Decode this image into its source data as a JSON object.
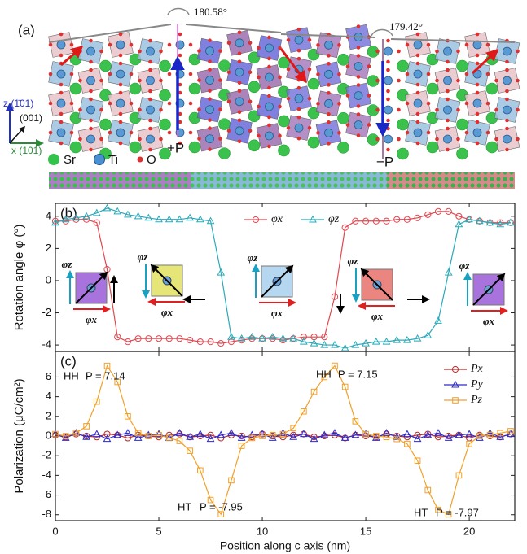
{
  "structure": {
    "panel": "(a)",
    "angles": [
      "180.58°",
      "179.42°"
    ],
    "polarization": [
      "+P",
      "−P"
    ],
    "legend": [
      "Sr",
      "Ti",
      "O"
    ],
    "axes": [
      "z (1̄01)",
      "(001)",
      "x (101)"
    ]
  },
  "chart_data": [
    {
      "type": "line",
      "panel": "(b)",
      "y_label": "Rotation angle φ (°)",
      "legend": "top center",
      "x": [
        0,
        0.5,
        1,
        1.5,
        2,
        2.5,
        3,
        3.5,
        4,
        4.5,
        5,
        5.5,
        6,
        6.5,
        7,
        7.5,
        8,
        8.5,
        9,
        9.5,
        10,
        10.5,
        11,
        11.5,
        12,
        12.5,
        13,
        13.5,
        14,
        14.5,
        15,
        15.5,
        16,
        16.5,
        17,
        17.5,
        18,
        18.5,
        19,
        19.5,
        20,
        20.5,
        21,
        21.5,
        22
      ],
      "xlim": [
        0,
        22.2
      ],
      "xticks": [
        0,
        5,
        10,
        15,
        20
      ],
      "ylim": [
        -4.4,
        4.8
      ],
      "yticks": [
        -4,
        -2,
        0,
        2,
        4
      ],
      "series": [
        {
          "name": "φx",
          "color": "#e2474f",
          "marker": "circle",
          "values": [
            3.7,
            3.7,
            3.8,
            3.8,
            3.6,
            0.7,
            -3.5,
            -3.8,
            -3.6,
            -3.6,
            -3.6,
            -3.6,
            -3.6,
            -3.7,
            -3.8,
            -3.8,
            -3.9,
            -3.8,
            -3.7,
            -3.6,
            -3.6,
            -3.6,
            -3.7,
            -3.6,
            -3.5,
            -3.5,
            -3.5,
            -1.0,
            3.3,
            3.7,
            3.7,
            3.7,
            3.7,
            3.8,
            3.8,
            3.9,
            4.1,
            4.3,
            4.3,
            4.0,
            3.8,
            3.7,
            3.6,
            3.6,
            3.6
          ]
        },
        {
          "name": "φz",
          "color": "#2aa9b8",
          "marker": "triangle",
          "values": [
            3.6,
            3.8,
            3.9,
            4.0,
            4.2,
            4.5,
            4.3,
            4.1,
            4.0,
            3.9,
            3.8,
            3.8,
            3.8,
            3.9,
            3.8,
            3.7,
            0.5,
            -3.5,
            -3.6,
            -3.5,
            -3.6,
            -3.5,
            -3.6,
            -3.6,
            -3.8,
            -3.9,
            -4.0,
            -4.0,
            -4.2,
            -4.0,
            -3.9,
            -3.8,
            -3.8,
            -3.7,
            -3.7,
            -3.6,
            -3.4,
            -2.5,
            0.5,
            3.5,
            3.8,
            3.7,
            3.6,
            3.5,
            3.6
          ]
        }
      ]
    },
    {
      "type": "line",
      "panel": "(c)",
      "y_label": "Polarization (μC/cm²)",
      "x_label": "Position along c axis (nm)",
      "legend": "upper right",
      "x": [
        0,
        0.5,
        1,
        1.5,
        2,
        2.5,
        3,
        3.5,
        4,
        4.5,
        5,
        5.5,
        6,
        6.5,
        7,
        7.5,
        8,
        8.5,
        9,
        9.5,
        10,
        10.5,
        11,
        11.5,
        12,
        12.5,
        13,
        13.5,
        14,
        14.5,
        15,
        15.5,
        16,
        16.5,
        17,
        17.5,
        18,
        18.5,
        19,
        19.5,
        20,
        20.5,
        21,
        21.5,
        22
      ],
      "xlim": [
        0,
        22.2
      ],
      "xticks": [
        0,
        5,
        10,
        15,
        20
      ],
      "ylim": [
        -8.6,
        8.6
      ],
      "yticks": [
        -8,
        -6,
        -4,
        -2,
        0,
        2,
        4,
        6
      ],
      "annotations": [
        {
          "label": "HH",
          "text": "P = 7.14"
        },
        {
          "label": "HT",
          "text": "P = -7.95"
        },
        {
          "label": "HH",
          "text": "P = 7.15"
        },
        {
          "label": "HT",
          "text": "P = -7.97"
        }
      ],
      "series": [
        {
          "name": "Px",
          "color": "#b52a2a",
          "marker": "circle",
          "values": [
            0.1,
            -0.1,
            0.2,
            0.0,
            -0.1,
            0.2,
            0.1,
            -0.2,
            0.1,
            0.0,
            -0.1,
            0.1,
            0.2,
            -0.1,
            0.0,
            0.1,
            -0.2,
            0.1,
            0.0,
            -0.1,
            0.2,
            0.0,
            -0.1,
            0.1,
            0.2,
            -0.1,
            0.0,
            0.1,
            -0.2,
            0.1,
            0.0,
            -0.1,
            0.2,
            0.0,
            -0.1,
            0.1,
            0.2,
            -0.1,
            0.0,
            0.1,
            -0.2,
            0.1,
            0.0,
            -0.1,
            0.2
          ]
        },
        {
          "name": "Py",
          "color": "#2a2ad0",
          "marker": "triangle",
          "values": [
            0.2,
            -0.2,
            0.3,
            -0.1,
            0.2,
            -0.3,
            0.1,
            0.3,
            -0.2,
            0.1,
            0.2,
            -0.2,
            0.3,
            -0.1,
            0.2,
            -0.3,
            0.1,
            0.3,
            -0.2,
            0.1,
            0.2,
            -0.2,
            0.3,
            -0.1,
            0.2,
            -0.3,
            0.1,
            0.3,
            -0.2,
            0.1,
            0.2,
            -0.2,
            0.3,
            -0.1,
            0.2,
            -0.3,
            0.1,
            0.3,
            -0.2,
            0.1,
            0.2,
            -0.2,
            0.3,
            -0.1,
            0.2
          ]
        },
        {
          "name": "Pz",
          "color": "#f0a02a",
          "marker": "square",
          "values": [
            0.2,
            0,
            0.3,
            1.0,
            3.5,
            7.14,
            5.5,
            2.0,
            0.3,
            0,
            0.1,
            -0.2,
            -0.5,
            -1.5,
            -3.5,
            -6.5,
            -7.95,
            -4.5,
            -1.0,
            -0.2,
            0,
            0.1,
            0.2,
            0.8,
            2.5,
            4.5,
            6.0,
            7.15,
            5.0,
            1.5,
            0.2,
            0,
            -0.1,
            -0.3,
            -0.8,
            -2.5,
            -5.5,
            -7.5,
            -7.97,
            -4.0,
            -0.8,
            0,
            0.1,
            0.3,
            0.5
          ]
        }
      ]
    }
  ]
}
